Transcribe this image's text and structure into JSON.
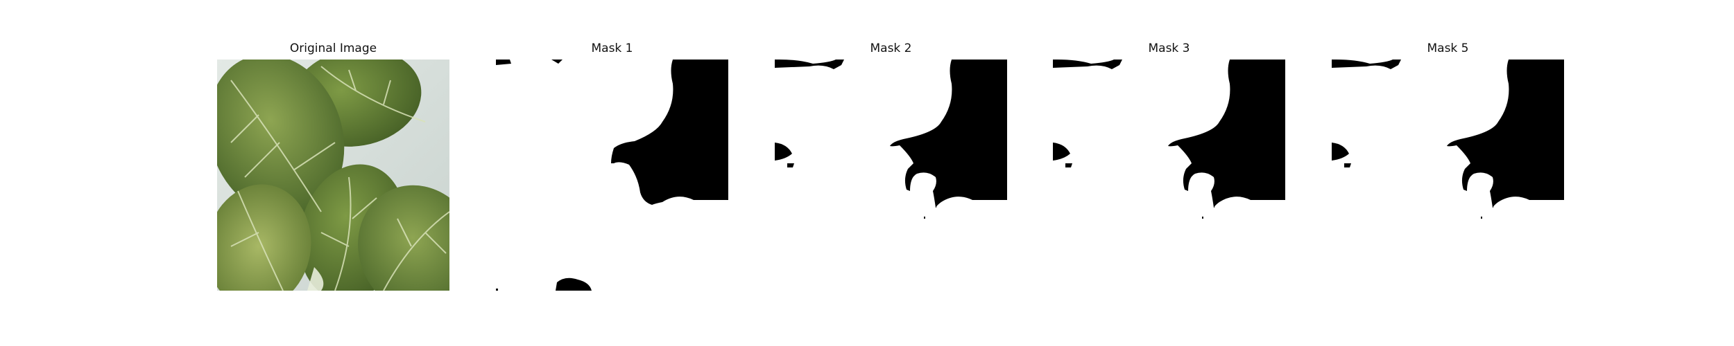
{
  "figure": {
    "panels": [
      {
        "title": "Original Image",
        "content": "leaf-photo"
      },
      {
        "title": "Mask 1",
        "content": "segmentation-mask"
      },
      {
        "title": "Mask 2",
        "content": "segmentation-mask"
      },
      {
        "title": "Mask 3",
        "content": "segmentation-mask"
      },
      {
        "title": "Mask 5",
        "content": "segmentation-mask"
      }
    ]
  },
  "colors": {
    "background": "#ffffff",
    "mask_foreground": "#000000",
    "mask_background": "#ffffff",
    "leaf_dark": "#3f5a22",
    "leaf_mid": "#6f8a3a",
    "leaf_light": "#a9b86a",
    "backdrop": "#d9e0dc"
  }
}
